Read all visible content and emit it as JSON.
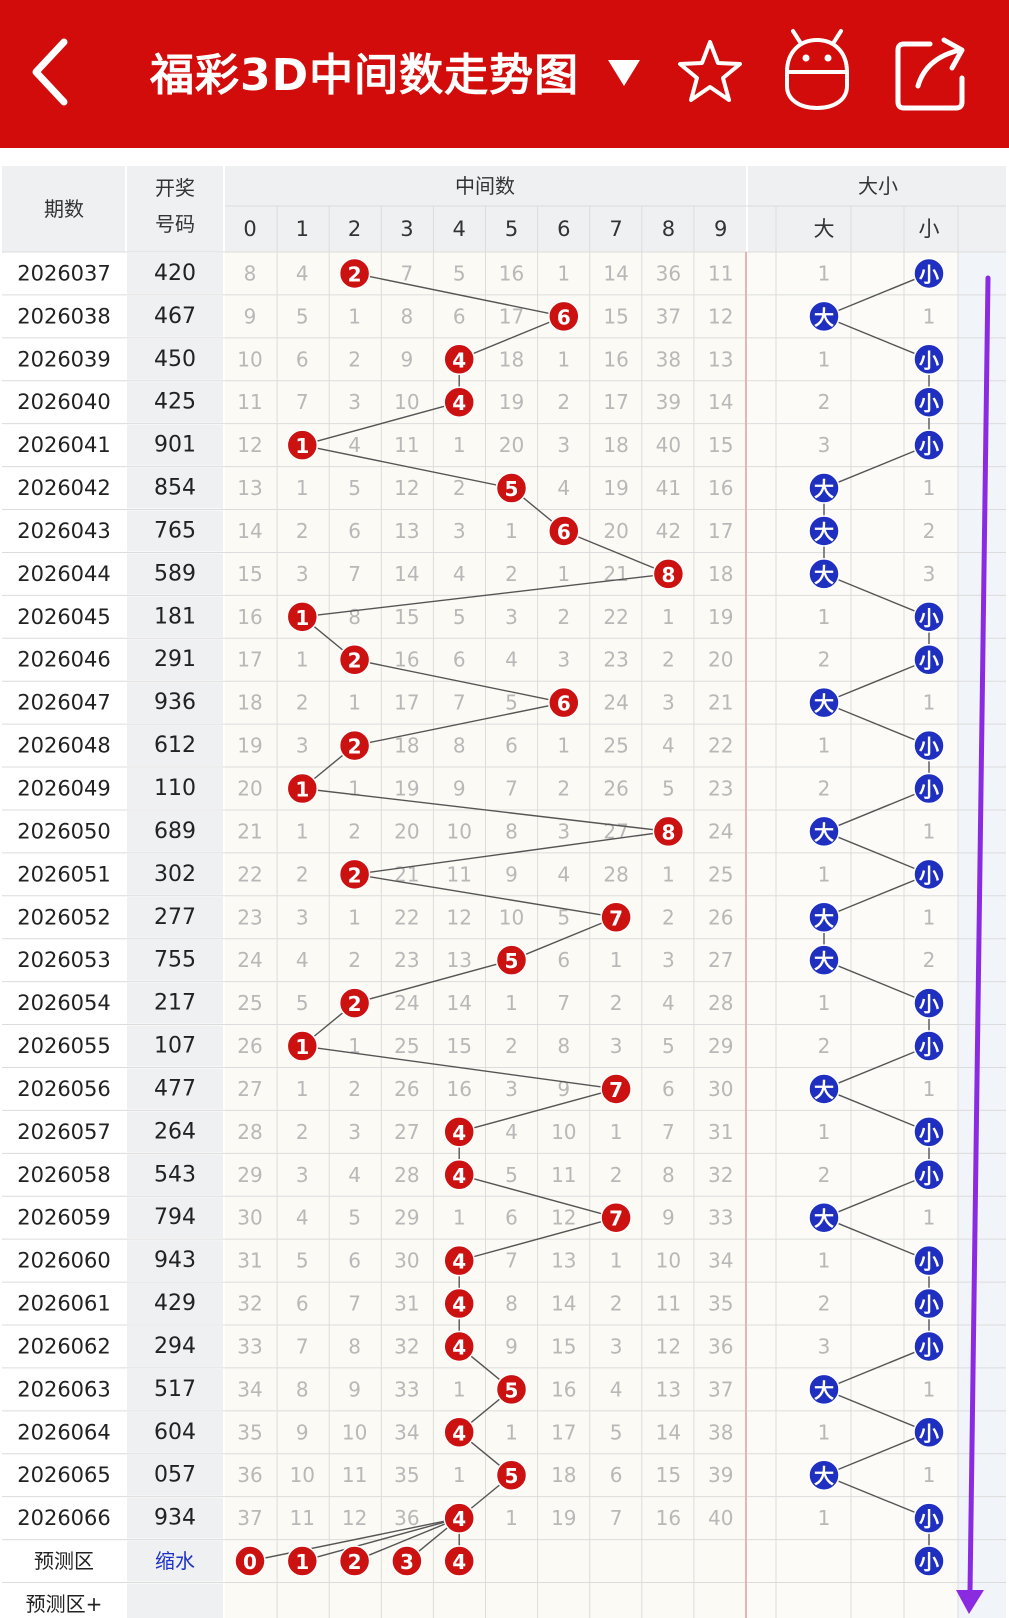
{
  "header": {
    "title": "福彩3D中间数走势图",
    "back_icon": "chevron-left-icon",
    "dropdown_icon": "caret-down-icon",
    "favorite_icon": "star-icon",
    "robot_icon": "robot-icon",
    "share_icon": "share-icon"
  },
  "colors": {
    "header_bg": "#d20b0b",
    "red_ball": "#cc1111",
    "blue_ball": "#1f2fbf",
    "miss_text": "#b8b8b8",
    "arrow": "#8a2be2"
  },
  "chart_data": {
    "type": "table",
    "columns": {
      "period": "期数",
      "draw_line1": "开奖",
      "draw_line2": "号码",
      "middle_group": "中间数",
      "middle_digits": [
        "0",
        "1",
        "2",
        "3",
        "4",
        "5",
        "6",
        "7",
        "8",
        "9"
      ],
      "size_group": "大小",
      "size_labels": [
        "大",
        "小"
      ]
    },
    "rows": [
      {
        "period": "2026037",
        "draw": "420",
        "mid": 2,
        "miss": [
          8,
          4,
          null,
          7,
          5,
          16,
          1,
          14,
          36,
          11
        ],
        "size": "小",
        "size_miss": 1
      },
      {
        "period": "2026038",
        "draw": "467",
        "mid": 6,
        "miss": [
          9,
          5,
          1,
          8,
          6,
          17,
          null,
          15,
          37,
          12
        ],
        "size": "大",
        "size_miss": 1
      },
      {
        "period": "2026039",
        "draw": "450",
        "mid": 4,
        "miss": [
          10,
          6,
          2,
          9,
          null,
          18,
          1,
          16,
          38,
          13
        ],
        "size": "小",
        "size_miss": 1
      },
      {
        "period": "2026040",
        "draw": "425",
        "mid": 4,
        "miss": [
          11,
          7,
          3,
          10,
          null,
          19,
          2,
          17,
          39,
          14
        ],
        "size": "小",
        "size_miss": 2
      },
      {
        "period": "2026041",
        "draw": "901",
        "mid": 1,
        "miss": [
          12,
          null,
          4,
          11,
          1,
          20,
          3,
          18,
          40,
          15
        ],
        "size": "小",
        "size_miss": 3
      },
      {
        "period": "2026042",
        "draw": "854",
        "mid": 5,
        "miss": [
          13,
          1,
          5,
          12,
          2,
          null,
          4,
          19,
          41,
          16
        ],
        "size": "大",
        "size_miss": 1
      },
      {
        "period": "2026043",
        "draw": "765",
        "mid": 6,
        "miss": [
          14,
          2,
          6,
          13,
          3,
          1,
          null,
          20,
          42,
          17
        ],
        "size": "大",
        "size_miss": 2
      },
      {
        "period": "2026044",
        "draw": "589",
        "mid": 8,
        "miss": [
          15,
          3,
          7,
          14,
          4,
          2,
          1,
          21,
          null,
          18
        ],
        "size": "大",
        "size_miss": 3
      },
      {
        "period": "2026045",
        "draw": "181",
        "mid": 1,
        "miss": [
          16,
          null,
          8,
          15,
          5,
          3,
          2,
          22,
          1,
          19
        ],
        "size": "小",
        "size_miss": 1
      },
      {
        "period": "2026046",
        "draw": "291",
        "mid": 2,
        "miss": [
          17,
          1,
          null,
          16,
          6,
          4,
          3,
          23,
          2,
          20
        ],
        "size": "小",
        "size_miss": 2
      },
      {
        "period": "2026047",
        "draw": "936",
        "mid": 6,
        "miss": [
          18,
          2,
          1,
          17,
          7,
          5,
          null,
          24,
          3,
          21
        ],
        "size": "大",
        "size_miss": 1
      },
      {
        "period": "2026048",
        "draw": "612",
        "mid": 2,
        "miss": [
          19,
          3,
          null,
          18,
          8,
          6,
          1,
          25,
          4,
          22
        ],
        "size": "小",
        "size_miss": 1
      },
      {
        "period": "2026049",
        "draw": "110",
        "mid": 1,
        "miss": [
          20,
          null,
          1,
          19,
          9,
          7,
          2,
          26,
          5,
          23
        ],
        "size": "小",
        "size_miss": 2
      },
      {
        "period": "2026050",
        "draw": "689",
        "mid": 8,
        "miss": [
          21,
          1,
          2,
          20,
          10,
          8,
          3,
          27,
          null,
          24
        ],
        "size": "大",
        "size_miss": 1
      },
      {
        "period": "2026051",
        "draw": "302",
        "mid": 2,
        "miss": [
          22,
          2,
          null,
          21,
          11,
          9,
          4,
          28,
          1,
          25
        ],
        "size": "小",
        "size_miss": 1
      },
      {
        "period": "2026052",
        "draw": "277",
        "mid": 7,
        "miss": [
          23,
          3,
          1,
          22,
          12,
          10,
          5,
          null,
          2,
          26
        ],
        "size": "大",
        "size_miss": 1
      },
      {
        "period": "2026053",
        "draw": "755",
        "mid": 5,
        "miss": [
          24,
          4,
          2,
          23,
          13,
          null,
          6,
          1,
          3,
          27
        ],
        "size": "大",
        "size_miss": 2
      },
      {
        "period": "2026054",
        "draw": "217",
        "mid": 2,
        "miss": [
          25,
          5,
          null,
          24,
          14,
          1,
          7,
          2,
          4,
          28
        ],
        "size": "小",
        "size_miss": 1
      },
      {
        "period": "2026055",
        "draw": "107",
        "mid": 1,
        "miss": [
          26,
          null,
          1,
          25,
          15,
          2,
          8,
          3,
          5,
          29
        ],
        "size": "小",
        "size_miss": 2
      },
      {
        "period": "2026056",
        "draw": "477",
        "mid": 7,
        "miss": [
          27,
          1,
          2,
          26,
          16,
          3,
          9,
          null,
          6,
          30
        ],
        "size": "大",
        "size_miss": 1
      },
      {
        "period": "2026057",
        "draw": "264",
        "mid": 4,
        "miss": [
          28,
          2,
          3,
          27,
          null,
          4,
          10,
          1,
          7,
          31
        ],
        "size": "小",
        "size_miss": 1
      },
      {
        "period": "2026058",
        "draw": "543",
        "mid": 4,
        "miss": [
          29,
          3,
          4,
          28,
          null,
          5,
          11,
          2,
          8,
          32
        ],
        "size": "小",
        "size_miss": 2
      },
      {
        "period": "2026059",
        "draw": "794",
        "mid": 7,
        "miss": [
          30,
          4,
          5,
          29,
          1,
          6,
          12,
          null,
          9,
          33
        ],
        "size": "大",
        "size_miss": 1
      },
      {
        "period": "2026060",
        "draw": "943",
        "mid": 4,
        "miss": [
          31,
          5,
          6,
          30,
          null,
          7,
          13,
          1,
          10,
          34
        ],
        "size": "小",
        "size_miss": 1
      },
      {
        "period": "2026061",
        "draw": "429",
        "mid": 4,
        "miss": [
          32,
          6,
          7,
          31,
          null,
          8,
          14,
          2,
          11,
          35
        ],
        "size": "小",
        "size_miss": 2
      },
      {
        "period": "2026062",
        "draw": "294",
        "mid": 4,
        "miss": [
          33,
          7,
          8,
          32,
          null,
          9,
          15,
          3,
          12,
          36
        ],
        "size": "小",
        "size_miss": 3
      },
      {
        "period": "2026063",
        "draw": "517",
        "mid": 5,
        "miss": [
          34,
          8,
          9,
          33,
          1,
          null,
          16,
          4,
          13,
          37
        ],
        "size": "大",
        "size_miss": 1
      },
      {
        "period": "2026064",
        "draw": "604",
        "mid": 4,
        "miss": [
          35,
          9,
          10,
          34,
          null,
          1,
          17,
          5,
          14,
          38
        ],
        "size": "小",
        "size_miss": 1
      },
      {
        "period": "2026065",
        "draw": "057",
        "mid": 5,
        "miss": [
          36,
          10,
          11,
          35,
          1,
          null,
          18,
          6,
          15,
          39
        ],
        "size": "大",
        "size_miss": 1
      },
      {
        "period": "2026066",
        "draw": "934",
        "mid": 4,
        "miss": [
          37,
          11,
          12,
          36,
          null,
          1,
          19,
          7,
          16,
          40
        ],
        "size": "小",
        "size_miss": 1
      }
    ],
    "prediction": {
      "label": "预测区",
      "link_label": "缩水",
      "digits": [
        0,
        1,
        2,
        3,
        4
      ],
      "size": "小"
    },
    "prediction2_label": "预测区+"
  }
}
